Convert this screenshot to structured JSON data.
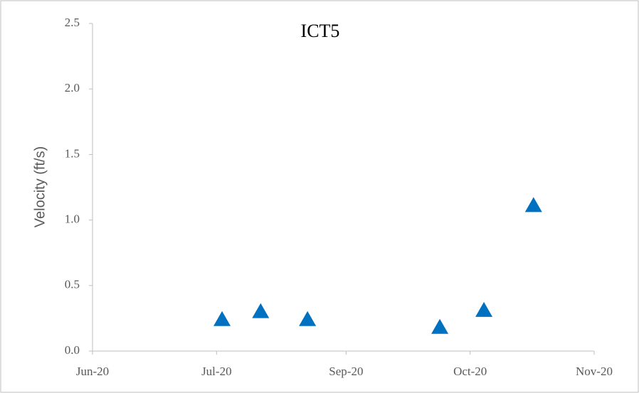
{
  "chart_data": {
    "type": "scatter",
    "title": "ICT5",
    "y_label": "Velocity (ft/s)",
    "series": [
      {
        "name": "ICT5",
        "color": "#0070c0",
        "marker": "triangle",
        "x": [
          "2020-07-18",
          "2020-08-01",
          "2020-08-18",
          "2020-10-05",
          "2020-10-21",
          "2020-11-08"
        ],
        "values": [
          0.24,
          0.3,
          0.24,
          0.18,
          0.31,
          1.11
        ]
      }
    ],
    "xlim": [
      "2020-06-01",
      "2020-11-30"
    ],
    "xticks": [
      {
        "value": "2020-06-01",
        "label": "Jun-20"
      },
      {
        "value": "2020-07-16",
        "label": "Jul-20"
      },
      {
        "value": "2020-09-01",
        "label": "Sep-20"
      },
      {
        "value": "2020-10-16",
        "label": "Oct-20"
      },
      {
        "value": "2020-11-30",
        "label": "Nov-20"
      }
    ],
    "ylim": [
      0,
      2.5
    ],
    "yticks": [
      {
        "value": 0,
        "label": "0.0"
      },
      {
        "value": 0.5,
        "label": "0.5"
      },
      {
        "value": 1,
        "label": "1.0"
      },
      {
        "value": 1.5,
        "label": "1.5"
      },
      {
        "value": 2,
        "label": "2.0"
      },
      {
        "value": 2.5,
        "label": "2.5"
      }
    ],
    "grid": false
  }
}
